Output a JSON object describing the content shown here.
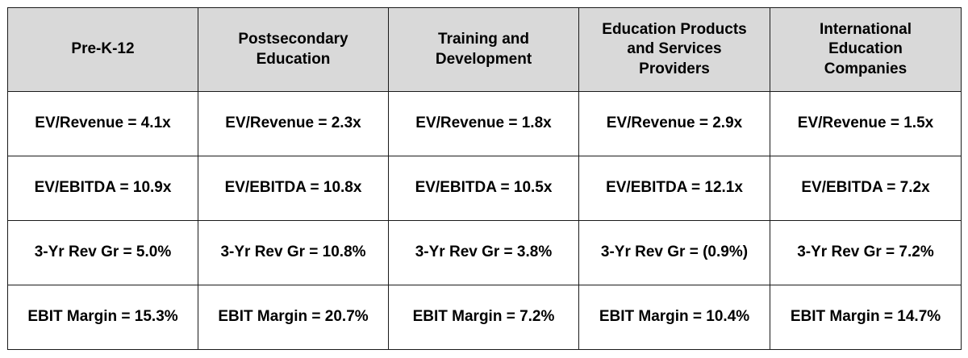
{
  "table": {
    "headers": [
      "Pre-K-12",
      "Postsecondary Education",
      "Training and Development",
      "Education Products and Services Providers",
      "International Education Companies"
    ],
    "rows": [
      [
        "EV/Revenue = 4.1x",
        "EV/Revenue = 2.3x",
        "EV/Revenue = 1.8x",
        "EV/Revenue = 2.9x",
        "EV/Revenue = 1.5x"
      ],
      [
        "EV/EBITDA = 10.9x",
        "EV/EBITDA = 10.8x",
        "EV/EBITDA = 10.5x",
        "EV/EBITDA = 12.1x",
        "EV/EBITDA = 7.2x"
      ],
      [
        "3-Yr Rev Gr = 5.0%",
        "3-Yr Rev Gr = 10.8%",
        "3-Yr Rev Gr = 3.8%",
        "3-Yr Rev Gr = (0.9%)",
        "3-Yr Rev Gr = 7.2%"
      ],
      [
        "EBIT Margin = 15.3%",
        "EBIT Margin = 20.7%",
        "EBIT Margin = 7.2%",
        "EBIT Margin = 10.4%",
        "EBIT Margin = 14.7%"
      ]
    ]
  },
  "colors": {
    "header_bg": "#d9d9d9",
    "cell_bg": "#ffffff",
    "border": "#1a1a1a",
    "text": "#000000"
  }
}
